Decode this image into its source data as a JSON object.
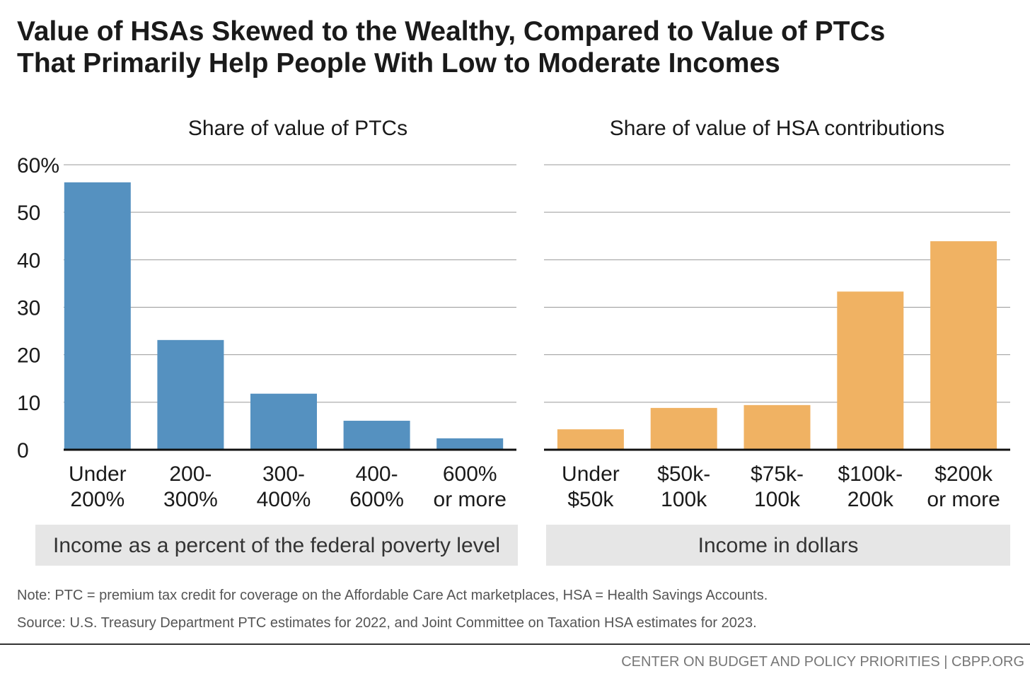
{
  "title": "Value of HSAs Skewed to the Wealthy, Compared to Value of PTCs That Primarily Help People With Low to Moderate Incomes",
  "note": "Note: PTC = premium tax credit for coverage on the Affordable Care Act marketplaces, HSA = Health Savings Accounts.",
  "source": "Source: U.S. Treasury Department PTC estimates for 2022, and Joint Committee on Taxation HSA estimates for 2023.",
  "credit": "CENTER ON BUDGET AND POLICY PRIORITIES | CBPP.ORG",
  "chart_data": [
    {
      "type": "bar",
      "title": "Share of value of PTCs",
      "x_label": "Income as a percent of the federal poverty level",
      "categories": [
        "Under\n200%",
        "200-\n300%",
        "300-\n400%",
        "400-\n600%",
        "600%\nor more"
      ],
      "values": [
        56.3,
        23.1,
        11.8,
        6.1,
        2.4
      ],
      "color": "#5591c0",
      "ylim": [
        0,
        60
      ],
      "yticks": [
        0,
        10,
        20,
        30,
        40,
        50,
        {
          "value": 60,
          "label": "60%"
        }
      ],
      "grid": true
    },
    {
      "type": "bar",
      "title": "Share of value of HSA contributions",
      "x_label": "Income in dollars",
      "categories": [
        "Under\n$50k",
        "$50k-\n100k",
        "$75k-\n100k",
        "$100k-\n200k",
        "$200k\nor more"
      ],
      "values": [
        4.3,
        8.8,
        9.4,
        33.3,
        43.9
      ],
      "color": "#f0b263",
      "ylim": [
        0,
        60
      ],
      "yticks": [
        0,
        10,
        20,
        30,
        40,
        50,
        60
      ],
      "grid": true
    }
  ]
}
